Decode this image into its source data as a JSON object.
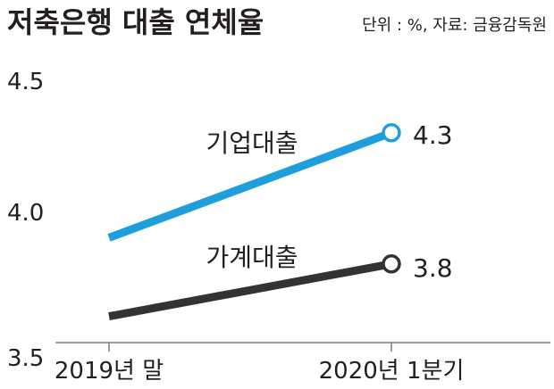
{
  "chart_data": {
    "type": "line",
    "title": "저축은행 대출 연체율",
    "unit_note": "단위 : %, 자료: 금융감독원",
    "categories": [
      "2019년 말",
      "2020년 1분기"
    ],
    "ylim": [
      3.5,
      4.5
    ],
    "yticks": [
      "4.5",
      "4.0",
      "3.5"
    ],
    "ytick_values": [
      4.5,
      4.0,
      3.5
    ],
    "grid": false,
    "legend": "inline labels",
    "series": [
      {
        "name": "기업대출",
        "values": [
          3.9,
          4.3
        ],
        "end_label": "4.3",
        "color": "#1e9fdc",
        "marker_fill": "#ffffff"
      },
      {
        "name": "가계대출",
        "values": [
          3.6,
          3.8
        ],
        "end_label": "3.8",
        "color": "#333335",
        "marker_fill": "#ffffff"
      }
    ]
  }
}
